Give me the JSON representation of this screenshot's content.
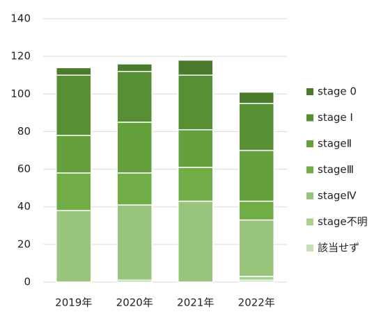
{
  "chart_data": {
    "type": "stacked_bar",
    "categories": [
      "2019年",
      "2020年",
      "2021年",
      "2022年"
    ],
    "series": [
      {
        "name": "該当せず",
        "color": "#c5e0b4",
        "values": [
          0,
          0,
          0,
          1
        ]
      },
      {
        "name": "stage不明",
        "color": "#a9d18e",
        "values": [
          0,
          1,
          0,
          2
        ]
      },
      {
        "name": "stageⅣ",
        "color": "#98c47c",
        "values": [
          38,
          40,
          43,
          30
        ]
      },
      {
        "name": "stageⅢ",
        "color": "#70ad47",
        "values": [
          20,
          17,
          18,
          10
        ]
      },
      {
        "name": "stageⅡ",
        "color": "#64a03c",
        "values": [
          20,
          27,
          20,
          27
        ]
      },
      {
        "name": "stage Ⅰ",
        "color": "#578f35",
        "values": [
          32,
          27,
          29,
          25
        ]
      },
      {
        "name": "stage 0",
        "color": "#4a7a2c",
        "values": [
          4,
          4,
          8,
          6
        ]
      }
    ],
    "ylim": [
      0,
      140
    ],
    "yticks": [
      0,
      20,
      40,
      60,
      80,
      100,
      120,
      140
    ],
    "grid": true,
    "legend": "right"
  }
}
